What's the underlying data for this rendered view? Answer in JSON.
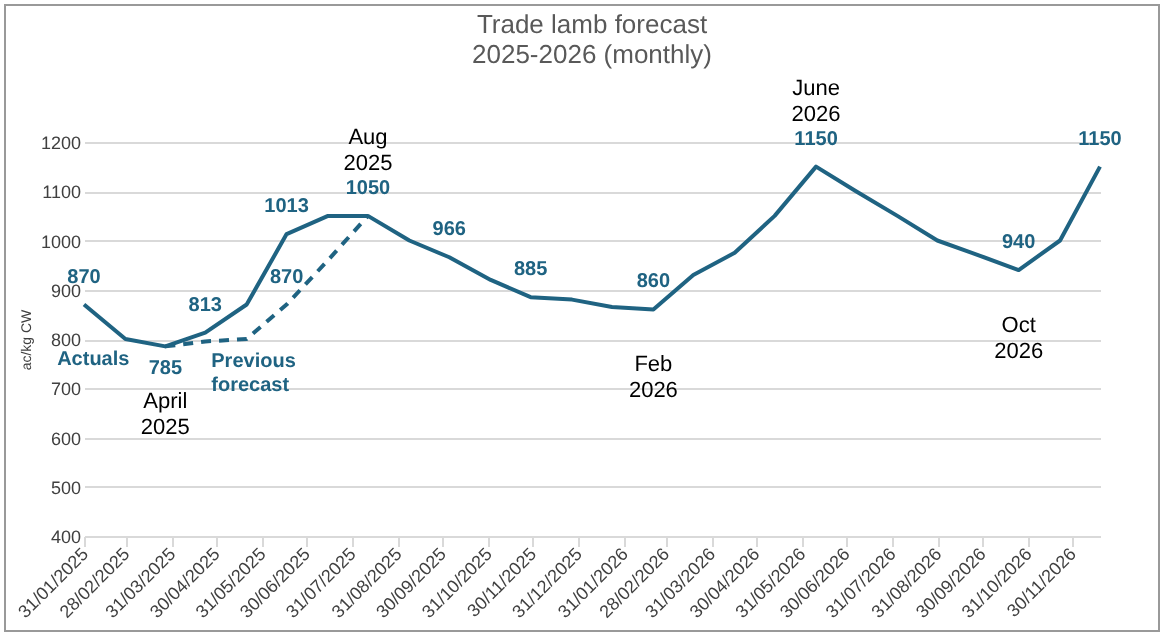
{
  "chart_data": {
    "type": "line",
    "title": "Trade lamb forecast",
    "subtitle": "2025-2026 (monthly)",
    "ylabel": "ac/kg CW",
    "x": [
      "2025-01-31",
      "2025-02-28",
      "2025-03-27",
      "2025-04-23",
      "2025-05-21",
      "2025-06-17",
      "2025-07-15",
      "2025-08-11",
      "2025-09-08",
      "2025-10-05",
      "2025-11-02",
      "2025-11-29",
      "2025-12-27",
      "2026-01-23",
      "2026-02-20",
      "2026-03-19",
      "2026-04-16",
      "2026-05-13",
      "2026-06-10",
      "2026-07-07",
      "2026-08-04",
      "2026-08-31",
      "2026-09-28",
      "2026-10-25",
      "2026-11-22",
      "2026-12-19"
    ],
    "series": [
      {
        "name": "Actuals",
        "color": "#1f6382",
        "line_style": "solid",
        "values": [
          870,
          800,
          785,
          813,
          870,
          1013,
          1050,
          1050,
          1000,
          966,
          920,
          885,
          880,
          865,
          860,
          930,
          975,
          1050,
          1150,
          1100,
          1050,
          1000,
          970,
          940,
          1000,
          1150
        ],
        "value_labels": [
          "870",
          null,
          null,
          "813",
          null,
          "1013",
          null,
          "1050",
          null,
          "966",
          null,
          "885",
          null,
          null,
          "860",
          null,
          null,
          null,
          "1150",
          null,
          null,
          null,
          null,
          "940",
          null,
          "1150"
        ]
      },
      {
        "name": "Previous forecast",
        "color": "#1f6382",
        "line_style": "dashed",
        "x": [
          "2025-03-27",
          "2025-04-23",
          "2025-05-21",
          "2025-06-17",
          "2025-07-15",
          "2025-08-11"
        ],
        "values": [
          785,
          795,
          800,
          870,
          960,
          1050
        ],
        "value_labels": [
          "785",
          null,
          null,
          "870",
          null,
          null
        ]
      }
    ],
    "annotations": [
      {
        "text": "April 2025",
        "x": "2025-03-27",
        "y": 785
      },
      {
        "text": "Aug 2025",
        "x": "2025-08-11",
        "y": 1050
      },
      {
        "text": "Feb 2026",
        "x": "2026-02-20",
        "y": 860
      },
      {
        "text": "June 2026",
        "x": "2026-06-10",
        "y": 1150
      },
      {
        "text": "Oct 2026",
        "x": "2026-10-25",
        "y": 940
      }
    ],
    "xlim": [
      "2025-01-31",
      "2026-12-19"
    ],
    "xticks": [
      {
        "value": "2025-01-31",
        "label": "31/01/2025"
      },
      {
        "value": "2025-02-28",
        "label": "28/02/2025"
      },
      {
        "value": "2025-03-31",
        "label": "31/03/2025"
      },
      {
        "value": "2025-04-30",
        "label": "30/04/2025"
      },
      {
        "value": "2025-05-31",
        "label": "31/05/2025"
      },
      {
        "value": "2025-06-30",
        "label": "30/06/2025"
      },
      {
        "value": "2025-07-31",
        "label": "31/07/2025"
      },
      {
        "value": "2025-08-31",
        "label": "31/08/2025"
      },
      {
        "value": "2025-09-30",
        "label": "30/09/2025"
      },
      {
        "value": "2025-10-31",
        "label": "31/10/2025"
      },
      {
        "value": "2025-11-30",
        "label": "30/11/2025"
      },
      {
        "value": "2025-12-31",
        "label": "31/12/2025"
      },
      {
        "value": "2026-01-31",
        "label": "31/01/2026"
      },
      {
        "value": "2026-02-28",
        "label": "28/02/2026"
      },
      {
        "value": "2026-03-31",
        "label": "31/03/2026"
      },
      {
        "value": "2026-04-30",
        "label": "30/04/2026"
      },
      {
        "value": "2026-05-31",
        "label": "31/05/2026"
      },
      {
        "value": "2026-06-30",
        "label": "30/06/2026"
      },
      {
        "value": "2026-07-31",
        "label": "31/07/2026"
      },
      {
        "value": "2026-08-31",
        "label": "31/08/2026"
      },
      {
        "value": "2026-09-30",
        "label": "30/09/2026"
      },
      {
        "value": "2026-10-31",
        "label": "31/10/2026"
      },
      {
        "value": "2026-11-30",
        "label": "30/11/2026"
      }
    ],
    "ylim": [
      400,
      1200
    ],
    "yticks": [
      400,
      500,
      600,
      700,
      800,
      900,
      1000,
      1100,
      1200
    ],
    "grid": "y"
  }
}
